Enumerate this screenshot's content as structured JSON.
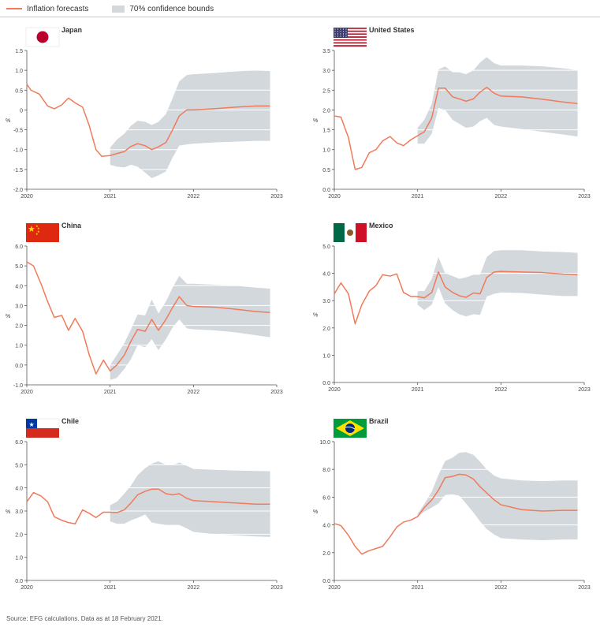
{
  "legend": {
    "forecast_label": "Inflation forecasts",
    "bounds_label": "70% confidence bounds"
  },
  "colors": {
    "forecast": "#f07a5a",
    "bounds": "#d3d8dd",
    "grid": "#ffffff",
    "axis": "#555555"
  },
  "source": "Source: EFG calculations. Data as at 18 February 2021.",
  "chart_data": [
    {
      "type": "line",
      "title": "Japan",
      "flag": "japan-flag-icon",
      "ylabel": "%",
      "xlim": [
        2020,
        2023
      ],
      "xticks": [
        2020,
        2021,
        2022,
        2023
      ],
      "ylim": [
        -2.0,
        1.5
      ],
      "yticks": [
        -2.0,
        -1.5,
        -1.0,
        -0.5,
        0,
        0.5,
        1.0,
        1.5
      ],
      "ytick_labels": [
        "-2.0",
        "-1.5",
        "-1.0",
        "-0.5",
        "0",
        "0.5",
        "1.0",
        "1.5"
      ],
      "series": [
        {
          "name": "Inflation forecasts",
          "x": [
            2020.0,
            2020.05,
            2020.15,
            2020.25,
            2020.33,
            2020.42,
            2020.5,
            2020.58,
            2020.67,
            2020.75,
            2020.83,
            2020.9,
            2021.0,
            2021.08,
            2021.17,
            2021.25,
            2021.33,
            2021.42,
            2021.5,
            2021.58,
            2021.67,
            2021.75,
            2021.83,
            2021.92,
            2022.0,
            2022.25,
            2022.5,
            2022.75,
            2022.92
          ],
          "y": [
            0.65,
            0.5,
            0.4,
            0.1,
            0.03,
            0.13,
            0.3,
            0.18,
            0.07,
            -0.4,
            -1.0,
            -1.17,
            -1.15,
            -1.1,
            -1.05,
            -0.92,
            -0.85,
            -0.9,
            -1.0,
            -0.93,
            -0.82,
            -0.5,
            -0.15,
            0.0,
            0.0,
            0.03,
            0.07,
            0.1,
            0.1
          ]
        }
      ],
      "band": {
        "x": [
          2021.0,
          2021.08,
          2021.17,
          2021.25,
          2021.33,
          2021.42,
          2021.5,
          2021.58,
          2021.67,
          2021.75,
          2021.83,
          2021.92,
          2022.0,
          2022.25,
          2022.5,
          2022.75,
          2022.92
        ],
        "upper": [
          -0.95,
          -0.75,
          -0.6,
          -0.4,
          -0.27,
          -0.3,
          -0.38,
          -0.3,
          -0.1,
          0.3,
          0.72,
          0.88,
          0.9,
          0.93,
          0.97,
          1.0,
          0.98
        ],
        "lower": [
          -1.38,
          -1.43,
          -1.45,
          -1.38,
          -1.43,
          -1.58,
          -1.72,
          -1.65,
          -1.55,
          -1.2,
          -0.9,
          -0.87,
          -0.85,
          -0.82,
          -0.8,
          -0.78,
          -0.78
        ]
      }
    },
    {
      "type": "line",
      "title": "United States",
      "flag": "us-flag-icon",
      "ylabel": "%",
      "xlim": [
        2020,
        2023
      ],
      "xticks": [
        2020,
        2021,
        2022,
        2023
      ],
      "ylim": [
        0.0,
        3.5
      ],
      "yticks": [
        0.0,
        0.5,
        1.0,
        1.5,
        2.0,
        2.5,
        3.0,
        3.5
      ],
      "ytick_labels": [
        "0.0",
        "0.5",
        "1.0",
        "1.5",
        "2.0",
        "2.5",
        "3.0",
        "3.5"
      ],
      "series": [
        {
          "name": "Inflation forecasts",
          "x": [
            2020.0,
            2020.08,
            2020.17,
            2020.25,
            2020.33,
            2020.42,
            2020.5,
            2020.58,
            2020.67,
            2020.75,
            2020.83,
            2020.92,
            2021.0,
            2021.08,
            2021.17,
            2021.25,
            2021.33,
            2021.42,
            2021.5,
            2021.58,
            2021.67,
            2021.75,
            2021.83,
            2021.92,
            2022.0,
            2022.25,
            2022.5,
            2022.75,
            2022.92
          ],
          "y": [
            1.85,
            1.82,
            1.3,
            0.5,
            0.55,
            0.92,
            1.0,
            1.22,
            1.33,
            1.17,
            1.1,
            1.25,
            1.35,
            1.45,
            1.8,
            2.55,
            2.55,
            2.33,
            2.28,
            2.22,
            2.28,
            2.45,
            2.57,
            2.42,
            2.35,
            2.33,
            2.27,
            2.2,
            2.16
          ]
        }
      ],
      "band": {
        "x": [
          2021.0,
          2021.08,
          2021.17,
          2021.25,
          2021.33,
          2021.42,
          2021.5,
          2021.58,
          2021.67,
          2021.75,
          2021.83,
          2021.92,
          2022.0,
          2022.25,
          2022.5,
          2022.75,
          2022.92
        ],
        "upper": [
          1.55,
          1.75,
          2.15,
          3.02,
          3.1,
          2.95,
          2.95,
          2.9,
          3.0,
          3.2,
          3.33,
          3.18,
          3.12,
          3.12,
          3.1,
          3.05,
          3.0
        ],
        "lower": [
          1.15,
          1.15,
          1.4,
          2.05,
          2.0,
          1.75,
          1.65,
          1.55,
          1.58,
          1.72,
          1.8,
          1.62,
          1.58,
          1.52,
          1.45,
          1.38,
          1.33
        ]
      }
    },
    {
      "type": "line",
      "title": "China",
      "flag": "china-flag-icon",
      "ylabel": "%",
      "xlim": [
        2020,
        2023
      ],
      "xticks": [
        2020,
        2021,
        2022,
        2023
      ],
      "ylim": [
        -1.0,
        6.0
      ],
      "yticks": [
        -1.0,
        0.0,
        1.0,
        2.0,
        3.0,
        4.0,
        5.0,
        6.0
      ],
      "ytick_labels": [
        "-1.0",
        "0.0",
        "1.0",
        "2.0",
        "3.0",
        "4.0",
        "5.0",
        "6.0"
      ],
      "series": [
        {
          "name": "Inflation forecasts",
          "x": [
            2020.0,
            2020.08,
            2020.17,
            2020.25,
            2020.33,
            2020.42,
            2020.5,
            2020.58,
            2020.67,
            2020.75,
            2020.83,
            2020.92,
            2021.0,
            2021.08,
            2021.17,
            2021.25,
            2021.33,
            2021.42,
            2021.5,
            2021.58,
            2021.67,
            2021.75,
            2021.83,
            2021.92,
            2022.0,
            2022.25,
            2022.5,
            2022.75,
            2022.92
          ],
          "y": [
            5.2,
            5.0,
            4.1,
            3.2,
            2.4,
            2.5,
            1.75,
            2.35,
            1.7,
            0.5,
            -0.45,
            0.25,
            -0.3,
            0.0,
            0.5,
            1.2,
            1.8,
            1.7,
            2.3,
            1.75,
            2.3,
            2.9,
            3.45,
            3.0,
            2.95,
            2.92,
            2.82,
            2.7,
            2.65
          ]
        }
      ],
      "band": {
        "x": [
          2021.0,
          2021.08,
          2021.17,
          2021.25,
          2021.33,
          2021.42,
          2021.5,
          2021.58,
          2021.67,
          2021.75,
          2021.83,
          2021.92,
          2022.0,
          2022.25,
          2022.5,
          2022.75,
          2022.92
        ],
        "upper": [
          0.0,
          0.5,
          1.1,
          1.8,
          2.55,
          2.5,
          3.3,
          2.6,
          3.2,
          3.9,
          4.5,
          4.1,
          4.1,
          4.05,
          4.0,
          3.9,
          3.85
        ],
        "lower": [
          -0.75,
          -0.65,
          -0.2,
          0.3,
          1.0,
          0.9,
          1.3,
          0.75,
          1.3,
          1.9,
          2.3,
          1.85,
          1.8,
          1.75,
          1.65,
          1.5,
          1.4
        ]
      }
    },
    {
      "type": "line",
      "title": "Mexico",
      "flag": "mexico-flag-icon",
      "ylabel": "%",
      "xlim": [
        2020,
        2023
      ],
      "xticks": [
        2020,
        2021,
        2022,
        2023
      ],
      "ylim": [
        0.0,
        5.0
      ],
      "yticks": [
        0.0,
        1.0,
        2.0,
        3.0,
        4.0,
        5.0
      ],
      "ytick_labels": [
        "0.0",
        "1.0",
        "2.0",
        "3.0",
        "4.0",
        "5.0"
      ],
      "series": [
        {
          "name": "Inflation forecasts",
          "x": [
            2020.0,
            2020.08,
            2020.17,
            2020.25,
            2020.33,
            2020.42,
            2020.5,
            2020.58,
            2020.67,
            2020.75,
            2020.83,
            2020.92,
            2021.0,
            2021.08,
            2021.17,
            2021.25,
            2021.33,
            2021.42,
            2021.5,
            2021.58,
            2021.67,
            2021.75,
            2021.83,
            2021.92,
            2022.0,
            2022.25,
            2022.5,
            2022.75,
            2022.92
          ],
          "y": [
            3.25,
            3.65,
            3.25,
            2.15,
            2.85,
            3.35,
            3.55,
            3.95,
            3.9,
            3.98,
            3.3,
            3.15,
            3.15,
            3.1,
            3.3,
            4.05,
            3.5,
            3.3,
            3.18,
            3.12,
            3.28,
            3.25,
            3.85,
            4.05,
            4.07,
            4.05,
            4.03,
            3.97,
            3.95
          ]
        }
      ],
      "band": {
        "x": [
          2021.0,
          2021.08,
          2021.17,
          2021.25,
          2021.33,
          2021.42,
          2021.5,
          2021.58,
          2021.67,
          2021.75,
          2021.83,
          2021.92,
          2022.0,
          2022.25,
          2022.5,
          2022.75,
          2022.92
        ],
        "upper": [
          3.35,
          3.35,
          3.8,
          4.6,
          4.0,
          3.9,
          3.8,
          3.85,
          3.95,
          3.95,
          4.6,
          4.82,
          4.85,
          4.85,
          4.8,
          4.78,
          4.75
        ],
        "lower": [
          2.85,
          2.65,
          2.85,
          3.5,
          2.9,
          2.65,
          2.5,
          2.42,
          2.5,
          2.48,
          3.15,
          3.25,
          3.3,
          3.28,
          3.22,
          3.17,
          3.17
        ]
      }
    },
    {
      "type": "line",
      "title": "Chile",
      "flag": "chile-flag-icon",
      "ylabel": "%",
      "xlim": [
        2020,
        2023
      ],
      "xticks": [
        2020,
        2021,
        2022,
        2023
      ],
      "ylim": [
        0.0,
        6.0
      ],
      "yticks": [
        0.0,
        1.0,
        2.0,
        3.0,
        4.0,
        5.0,
        6.0
      ],
      "ytick_labels": [
        "0.0",
        "1.0",
        "2.0",
        "3.0",
        "4.0",
        "5.0",
        "6.0"
      ],
      "series": [
        {
          "name": "Inflation forecasts",
          "x": [
            2020.0,
            2020.08,
            2020.17,
            2020.25,
            2020.33,
            2020.42,
            2020.5,
            2020.58,
            2020.67,
            2020.75,
            2020.83,
            2020.92,
            2021.0,
            2021.08,
            2021.17,
            2021.25,
            2021.33,
            2021.42,
            2021.5,
            2021.58,
            2021.67,
            2021.75,
            2021.83,
            2021.92,
            2022.0,
            2022.25,
            2022.5,
            2022.75,
            2022.92
          ],
          "y": [
            3.4,
            3.8,
            3.65,
            3.4,
            2.75,
            2.6,
            2.5,
            2.45,
            3.05,
            2.9,
            2.72,
            2.95,
            2.95,
            2.93,
            3.05,
            3.35,
            3.7,
            3.85,
            3.95,
            3.95,
            3.75,
            3.7,
            3.75,
            3.55,
            3.45,
            3.4,
            3.35,
            3.3,
            3.3
          ]
        }
      ],
      "band": {
        "x": [
          2021.0,
          2021.08,
          2021.17,
          2021.25,
          2021.33,
          2021.42,
          2021.5,
          2021.58,
          2021.67,
          2021.75,
          2021.83,
          2021.92,
          2022.0,
          2022.25,
          2022.5,
          2022.75,
          2022.92
        ],
        "upper": [
          3.25,
          3.4,
          3.75,
          4.1,
          4.55,
          4.85,
          5.05,
          5.15,
          5.0,
          4.98,
          5.1,
          4.95,
          4.82,
          4.78,
          4.75,
          4.73,
          4.72
        ],
        "lower": [
          2.55,
          2.45,
          2.45,
          2.6,
          2.7,
          2.85,
          2.5,
          2.45,
          2.4,
          2.4,
          2.4,
          2.25,
          2.1,
          2.0,
          1.95,
          1.9,
          1.88
        ]
      }
    },
    {
      "type": "line",
      "title": "Brazil",
      "flag": "brazil-flag-icon",
      "ylabel": "%",
      "xlim": [
        2020,
        2023
      ],
      "xticks": [
        2020,
        2021,
        2022,
        2023
      ],
      "ylim": [
        0.0,
        10.0
      ],
      "yticks": [
        0.0,
        2.0,
        4.0,
        6.0,
        8.0,
        10.0
      ],
      "ytick_labels": [
        "0.0",
        "2.0",
        "4.0",
        "6.0",
        "8.0",
        "10.0"
      ],
      "series": [
        {
          "name": "Inflation forecasts",
          "x": [
            2020.0,
            2020.08,
            2020.17,
            2020.25,
            2020.33,
            2020.42,
            2020.5,
            2020.58,
            2020.67,
            2020.75,
            2020.83,
            2020.92,
            2021.0,
            2021.08,
            2021.17,
            2021.25,
            2021.33,
            2021.42,
            2021.5,
            2021.58,
            2021.67,
            2021.75,
            2021.83,
            2021.92,
            2022.0,
            2022.25,
            2022.5,
            2022.75,
            2022.92
          ],
          "y": [
            4.1,
            3.95,
            3.25,
            2.45,
            1.9,
            2.15,
            2.3,
            2.45,
            3.15,
            3.85,
            4.2,
            4.35,
            4.6,
            5.25,
            5.8,
            6.5,
            7.4,
            7.5,
            7.65,
            7.6,
            7.3,
            6.75,
            6.3,
            5.8,
            5.45,
            5.1,
            5.0,
            5.05,
            5.05
          ]
        }
      ],
      "band": {
        "x": [
          2021.0,
          2021.08,
          2021.17,
          2021.25,
          2021.33,
          2021.42,
          2021.5,
          2021.58,
          2021.67,
          2021.75,
          2021.83,
          2021.92,
          2022.0,
          2022.25,
          2022.5,
          2022.75,
          2022.92
        ],
        "upper": [
          4.8,
          5.5,
          6.4,
          7.6,
          8.6,
          8.85,
          9.2,
          9.25,
          9.05,
          8.55,
          8.0,
          7.55,
          7.35,
          7.2,
          7.15,
          7.2,
          7.2
        ],
        "lower": [
          4.6,
          4.95,
          5.25,
          5.55,
          6.15,
          6.2,
          6.1,
          5.55,
          4.9,
          4.25,
          3.7,
          3.3,
          3.05,
          2.95,
          2.9,
          2.95,
          2.95
        ]
      }
    }
  ]
}
